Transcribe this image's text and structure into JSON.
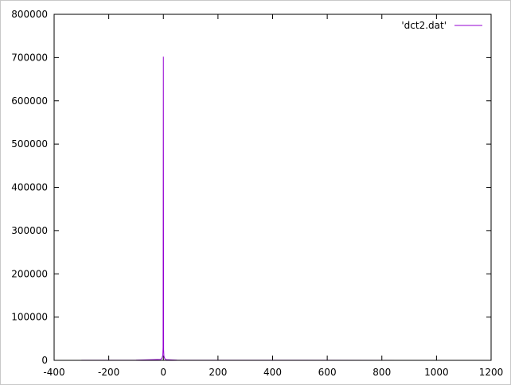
{
  "chart_data": {
    "type": "line",
    "title": "",
    "xlabel": "",
    "ylabel": "",
    "xlim": [
      -400,
      1200
    ],
    "ylim": [
      0,
      800000
    ],
    "x_ticks": [
      -400,
      -200,
      0,
      200,
      400,
      600,
      800,
      1000,
      1200
    ],
    "y_ticks": [
      0,
      100000,
      200000,
      300000,
      400000,
      500000,
      600000,
      700000,
      800000
    ],
    "x_tick_labels": [
      "-400",
      "-200",
      "0",
      "200",
      "400",
      "600",
      "800",
      "1000",
      "1200"
    ],
    "y_tick_labels": [
      "0",
      "100000",
      "200000",
      "300000",
      "400000",
      "500000",
      "600000",
      "700000",
      "800000"
    ],
    "grid": false,
    "legend_position": "top-right",
    "series": [
      {
        "name": "'dct2.dat'",
        "color": "#9400d3",
        "x": [
          -300,
          -100,
          -10,
          -5,
          -2,
          -1,
          0,
          1,
          2,
          5,
          10,
          50,
          100,
          500,
          1000
        ],
        "y": [
          200,
          500,
          2000,
          5000,
          12000,
          30000,
          702000,
          25000,
          10000,
          4000,
          1500,
          500,
          300,
          150,
          100
        ]
      }
    ]
  }
}
